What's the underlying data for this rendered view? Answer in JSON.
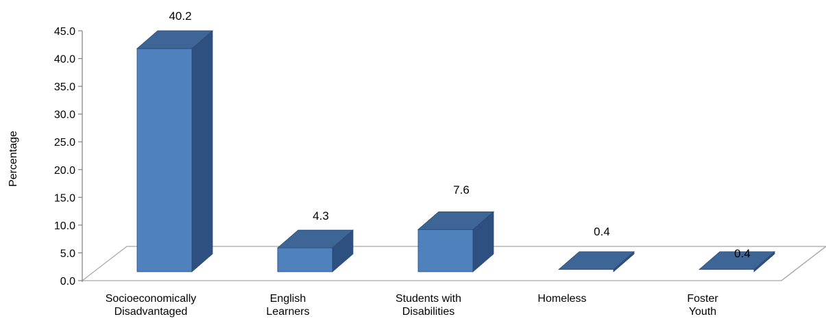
{
  "chart_data": {
    "type": "bar",
    "style": "3d-column",
    "categories": [
      [
        "Socioeconomically",
        "Disadvantaged"
      ],
      [
        "English",
        "Learners"
      ],
      [
        "Students with",
        "Disabilities"
      ],
      [
        "Homeless"
      ],
      [
        "Foster",
        "Youth"
      ]
    ],
    "values": [
      40.2,
      4.3,
      7.6,
      0.4,
      0.4
    ],
    "data_labels": [
      "40.2",
      "4.3",
      "7.6",
      "0.4",
      "0.4"
    ],
    "ylabel": "Percentage",
    "ylim": [
      0,
      45
    ],
    "yticks": [
      "0.0",
      "5.0",
      "10.0",
      "15.0",
      "20.0",
      "25.0",
      "30.0",
      "35.0",
      "40.0",
      "45.0"
    ],
    "grid": false,
    "legend": "none",
    "colors": {
      "front": "#4f81bd",
      "top": "#3d6596",
      "side": "#2e5081",
      "edge": "#2c4a74",
      "axis": "#7f7f7f",
      "floor": "#a6a6a6"
    }
  }
}
